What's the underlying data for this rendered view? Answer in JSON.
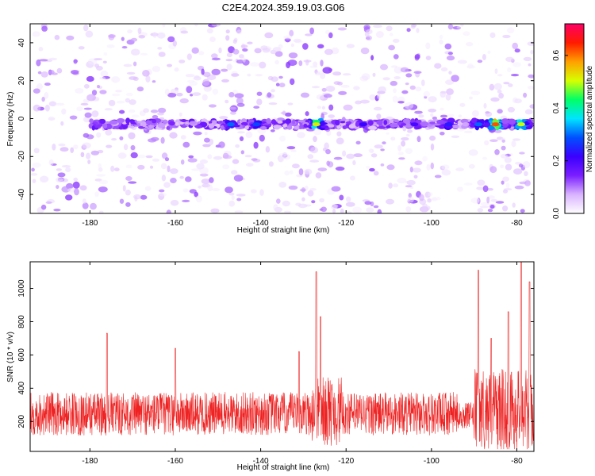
{
  "title": "C2E4.2024.359.19.03.G06",
  "chart_data": [
    {
      "type": "heatmap",
      "xlabel": "Height of straight line (km)",
      "ylabel": "Frequency (Hz)",
      "xlim": [
        -194,
        -76
      ],
      "ylim": [
        -50,
        50
      ],
      "xticks": [
        -180,
        -160,
        -140,
        -120,
        -100,
        -80
      ],
      "yticks": [
        -40,
        -20,
        0,
        20,
        40
      ],
      "colorbar": {
        "label": "Normalized spectral amplitude",
        "range": [
          0.0,
          0.72
        ],
        "ticks": [
          0.0,
          0.2,
          0.4,
          0.6
        ],
        "colormap": [
          "#ffffff",
          "#d9b3ff",
          "#7a1fff",
          "#3a00ff",
          "#0050ff",
          "#00e5ff",
          "#00ff66",
          "#d7ff00",
          "#ffa000",
          "#ff1a00",
          "#ff0066"
        ]
      },
      "band_frequency_hz": -3,
      "band_peaks": [
        {
          "x": -147,
          "v": 0.3
        },
        {
          "x": -141,
          "v": 0.28
        },
        {
          "x": -127,
          "v": 0.52
        },
        {
          "x": -116,
          "v": 0.22
        },
        {
          "x": -104,
          "v": 0.2
        },
        {
          "x": -96,
          "v": 0.24
        },
        {
          "x": -89,
          "v": 0.3
        },
        {
          "x": -85,
          "v": 0.62
        },
        {
          "x": -79,
          "v": 0.5
        }
      ]
    },
    {
      "type": "line",
      "xlabel": "Height of straight line (km)",
      "ylabel": "SNR (10 * v/v)",
      "xlim": [
        -194,
        -76
      ],
      "ylim": [
        20,
        1160
      ],
      "xticks": [
        -180,
        -160,
        -140,
        -120,
        -100,
        -80
      ],
      "yticks": [
        200,
        400,
        600,
        800,
        1000
      ],
      "line_color": "#ee2222",
      "baseline": 220,
      "spikes": [
        {
          "x": -176,
          "y": 730
        },
        {
          "x": -160,
          "y": 640
        },
        {
          "x": -131,
          "y": 620
        },
        {
          "x": -127,
          "y": 1100
        },
        {
          "x": -126,
          "y": 830
        },
        {
          "x": -89,
          "y": 1110
        },
        {
          "x": -86,
          "y": 700
        },
        {
          "x": -82,
          "y": 860
        },
        {
          "x": -79,
          "y": 1160
        },
        {
          "x": -77,
          "y": 1040
        }
      ]
    }
  ]
}
